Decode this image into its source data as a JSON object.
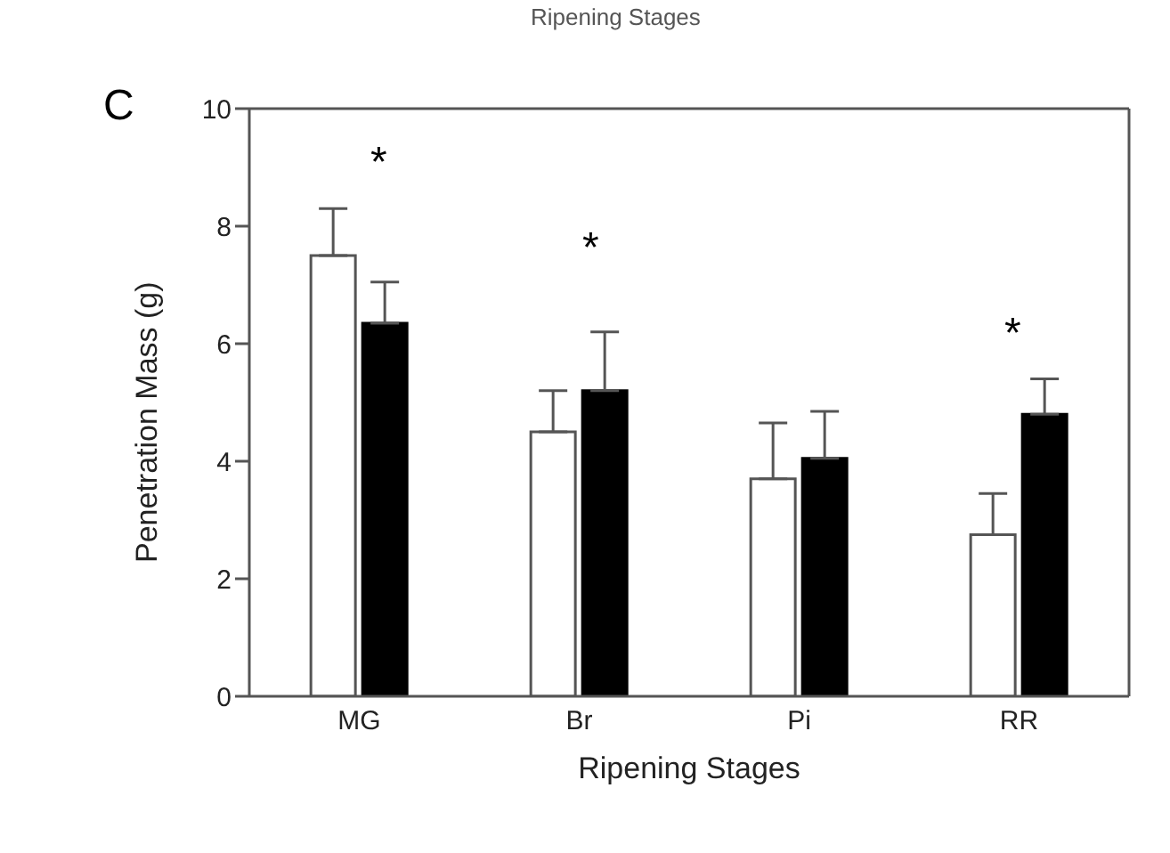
{
  "chart_data": {
    "type": "bar",
    "xlabel": "Ripening Stages",
    "ylabel": "Penetration Mass (g)",
    "categories": [
      "MG",
      "Br",
      "Pi",
      "RR"
    ],
    "series": [
      {
        "color": "#ffffff",
        "values": [
          7.5,
          4.5,
          3.7,
          2.75
        ],
        "errors": [
          [
            7.5,
            8.3
          ],
          [
            4.5,
            5.2
          ],
          [
            3.7,
            4.65
          ],
          [
            2.75,
            3.45
          ]
        ]
      },
      {
        "color": "#000000",
        "values": [
          6.35,
          5.2,
          4.05,
          4.8
        ],
        "errors": [
          [
            6.35,
            7.05
          ],
          [
            5.2,
            6.2
          ],
          [
            4.05,
            4.85
          ],
          [
            4.8,
            5.4
          ]
        ]
      }
    ],
    "ylim": [
      0,
      10
    ],
    "yticks": [
      0,
      2,
      4,
      6,
      8,
      10
    ],
    "grid": false,
    "legend": false,
    "annotations": [
      "C",
      "Ripening Stages",
      "*",
      "*",
      "*"
    ]
  }
}
